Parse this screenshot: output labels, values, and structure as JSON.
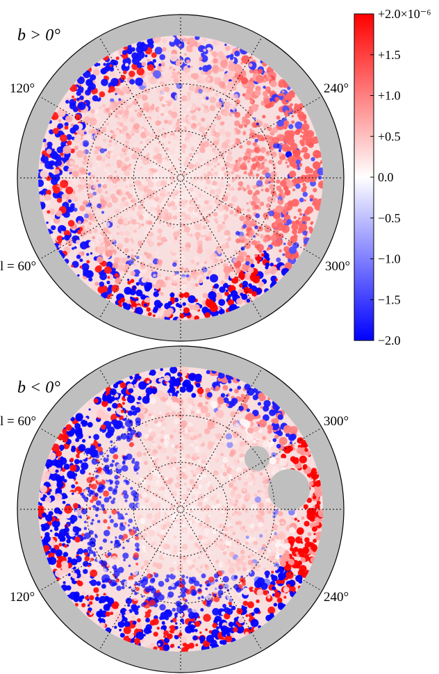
{
  "maps": [
    {
      "hemisphere_label": "b > 0°",
      "labels": {
        "l120": "120°",
        "l240": "240°",
        "l60": "l = 60°",
        "l300": "300°"
      },
      "masked_holes": 0
    },
    {
      "hemisphere_label": "b < 0°",
      "labels": {
        "l60": "l = 60°",
        "l300": "300°",
        "l120": "120°",
        "l240": "240°"
      },
      "masked_holes": 2
    }
  ],
  "colorbar": {
    "min": -2.0,
    "max": 2.0,
    "multiplier": "×10⁻⁶",
    "colors": {
      "low": "#0000ff",
      "mid": "#ffffff",
      "high": "#ff0000"
    },
    "ticks": [
      "+2.0×10⁻⁶",
      "+1.5",
      "+1.0",
      "+0.5",
      "0.0",
      "−0.5",
      "−1.0",
      "−1.5",
      "−2.0"
    ],
    "tick_values": [
      2.0,
      1.5,
      1.0,
      0.5,
      0.0,
      -0.5,
      -1.0,
      -1.5,
      -2.0
    ]
  },
  "colors": {
    "mask": "#bfbfbf",
    "frame": "#000000"
  }
}
